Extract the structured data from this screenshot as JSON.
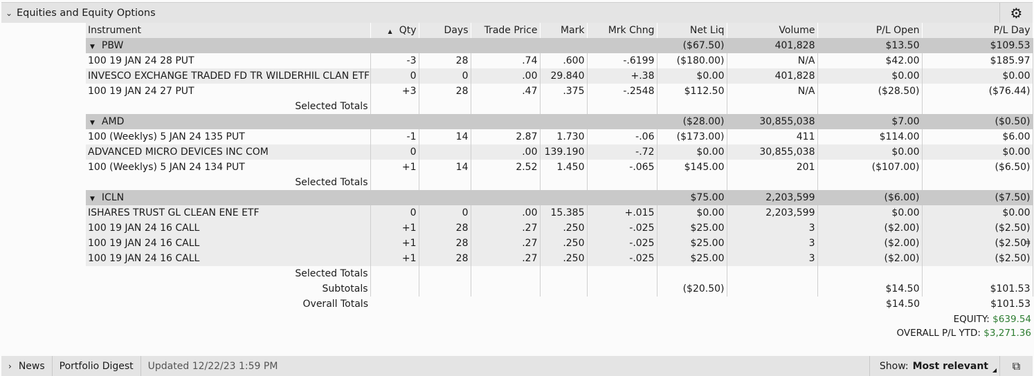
{
  "panel": {
    "title": "Equities and Equity Options",
    "collapse_icon": "chevron-down-icon",
    "settings_icon": "gear-icon"
  },
  "columns": [
    "Instrument",
    "Qty",
    "Days",
    "Trade Price",
    "Mark",
    "Mrk Chng",
    "Net Liq",
    "Volume",
    "P/L Open",
    "P/L Day"
  ],
  "sort_indicator": "▲",
  "groups": [
    {
      "symbol": "PBW",
      "summary": {
        "net_liq": "($67.50)",
        "volume": "401,828",
        "pl_open": "$13.50",
        "pl_day": "$109.53"
      },
      "rows": [
        {
          "instrument": "100 19 JAN 24 28 PUT",
          "qty": "-3",
          "days": "28",
          "trade_price": ".74",
          "mark": ".600",
          "mrk_chng": "-.6199",
          "net_liq": "($180.00)",
          "volume": "N/A",
          "pl_open": "$42.00",
          "pl_day": "$185.97"
        },
        {
          "instrument": "INVESCO EXCHANGE TRADED FD TR WILDERHIL CLAN ETF",
          "qty": "0",
          "days": "0",
          "trade_price": ".00",
          "mark": "29.840",
          "mrk_chng": "+.38",
          "net_liq": "$0.00",
          "volume": "401,828",
          "pl_open": "$0.00",
          "pl_day": "$0.00"
        },
        {
          "instrument": "100 19 JAN 24 27 PUT",
          "qty": "+3",
          "days": "28",
          "trade_price": ".47",
          "mark": ".375",
          "mrk_chng": "-.2548",
          "net_liq": "$112.50",
          "volume": "N/A",
          "pl_open": "($28.50)",
          "pl_day": "($76.44)"
        }
      ],
      "totals_label": "Selected Totals"
    },
    {
      "symbol": "AMD",
      "summary": {
        "net_liq": "($28.00)",
        "volume": "30,855,038",
        "pl_open": "$7.00",
        "pl_day": "($0.50)"
      },
      "rows": [
        {
          "instrument": "100 (Weeklys) 5 JAN 24 135 PUT",
          "qty": "-1",
          "days": "14",
          "trade_price": "2.87",
          "mark": "1.730",
          "mrk_chng": "-.06",
          "net_liq": "($173.00)",
          "volume": "411",
          "pl_open": "$114.00",
          "pl_day": "$6.00"
        },
        {
          "instrument": "ADVANCED MICRO DEVICES INC COM",
          "qty": "0",
          "days": "",
          "trade_price": ".00",
          "mark": "139.190",
          "mrk_chng": "-.72",
          "net_liq": "$0.00",
          "volume": "30,855,038",
          "pl_open": "$0.00",
          "pl_day": "$0.00"
        },
        {
          "instrument": "100 (Weeklys) 5 JAN 24 134 PUT",
          "qty": "+1",
          "days": "14",
          "trade_price": "2.52",
          "mark": "1.450",
          "mrk_chng": "-.065",
          "net_liq": "$145.00",
          "volume": "201",
          "pl_open": "($107.00)",
          "pl_day": "($6.50)"
        }
      ],
      "totals_label": "Selected Totals"
    },
    {
      "symbol": "ICLN",
      "summary": {
        "net_liq": "$75.00",
        "volume": "2,203,599",
        "pl_open": "($6.00)",
        "pl_day": "($7.50)"
      },
      "rows": [
        {
          "instrument": "ISHARES TRUST GL CLEAN ENE ETF",
          "qty": "0",
          "days": "0",
          "trade_price": ".00",
          "mark": "15.385",
          "mrk_chng": "+.015",
          "net_liq": "$0.00",
          "volume": "2,203,599",
          "pl_open": "$0.00",
          "pl_day": "$0.00"
        },
        {
          "instrument": "100 19 JAN 24 16 CALL",
          "qty": "+1",
          "days": "28",
          "trade_price": ".27",
          "mark": ".250",
          "mrk_chng": "-.025",
          "net_liq": "$25.00",
          "volume": "3",
          "pl_open": "($2.00)",
          "pl_day": "($2.50)"
        },
        {
          "instrument": "100 19 JAN 24 16 CALL",
          "qty": "+1",
          "days": "28",
          "trade_price": ".27",
          "mark": ".250",
          "mrk_chng": "-.025",
          "net_liq": "$25.00",
          "volume": "3",
          "pl_open": "($2.00)",
          "pl_day": "($2.50)"
        },
        {
          "instrument": "100 19 JAN 24 16 CALL",
          "qty": "+1",
          "days": "28",
          "trade_price": ".27",
          "mark": ".250",
          "mrk_chng": "-.025",
          "net_liq": "$25.00",
          "volume": "3",
          "pl_open": "($2.00)",
          "pl_day": "($2.50)"
        }
      ],
      "totals_label": "Selected Totals"
    }
  ],
  "subtotals": {
    "label": "Subtotals",
    "net_liq": "($20.50)",
    "pl_open": "$14.50",
    "pl_day": "$101.53"
  },
  "overall": {
    "label": "Overall Totals",
    "pl_open": "$14.50",
    "pl_day": "$101.53"
  },
  "equity": {
    "label": "EQUITY:",
    "value": "$639.54"
  },
  "overall_ytd": {
    "label": "OVERALL P/L YTD:",
    "value": "$3,271.36"
  },
  "footer": {
    "news_label": "News",
    "digest_label": "Portfolio Digest",
    "updated": "Updated 12/22/23 1:59 PM",
    "show_label": "Show:",
    "show_value": "Most relevant"
  },
  "colors": {
    "positive_accent": "#2e7d32",
    "group_bg": "#c9c9c9",
    "header_bg": "#e4e4e4"
  }
}
